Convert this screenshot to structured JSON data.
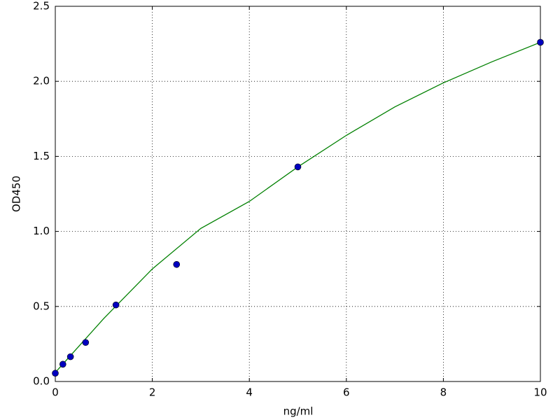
{
  "chart_data": {
    "type": "scatter",
    "xlabel": "ng/ml",
    "ylabel": "OD450",
    "xlim": [
      0,
      10
    ],
    "ylim": [
      0,
      2.5
    ],
    "xticks": [
      0,
      2,
      4,
      6,
      8,
      10
    ],
    "yticks": [
      {
        "value": 0,
        "label": "0.0"
      },
      0.5,
      {
        "value": 1,
        "label": "1.0"
      },
      1.5,
      {
        "value": 2,
        "label": "2.0"
      },
      2.5
    ],
    "grid": true,
    "series": [
      {
        "type": "line",
        "color": "#008000",
        "x": [
          0,
          0.5,
          1,
          2,
          3,
          4,
          5,
          6,
          7,
          8,
          9,
          10
        ],
        "values": [
          0.06,
          0.24,
          0.42,
          0.75,
          1.02,
          1.2,
          1.43,
          1.64,
          1.83,
          1.99,
          2.13,
          2.26
        ]
      },
      {
        "type": "scatter",
        "color": "#0000bf",
        "x": [
          0,
          0.156,
          0.3125,
          0.625,
          1.25,
          2.5,
          5,
          10
        ],
        "values": [
          0.055,
          0.115,
          0.165,
          0.26,
          0.51,
          0.78,
          1.43,
          2.26
        ]
      }
    ]
  }
}
